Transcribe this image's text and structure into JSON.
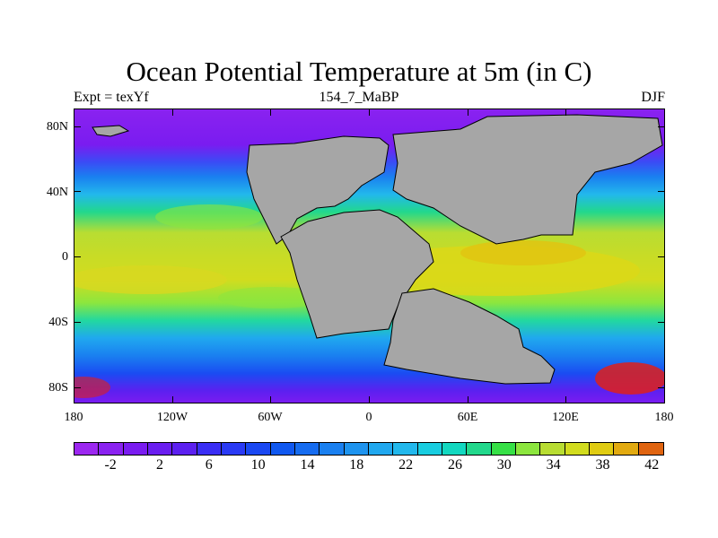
{
  "title": "Ocean Potential Temperature at 5m (in C)",
  "left_label": "Expt = texYf",
  "center_label": "154_7_MaBP",
  "right_label": "DJF",
  "colors": {
    "land": "#a6a6a6",
    "ocean_bands": [
      "#9c27f0",
      "#7a1cf0",
      "#5c20f0",
      "#2a3af5",
      "#1058f0",
      "#1a80f0",
      "#20a0ef",
      "#22b8ec",
      "#18cde0",
      "#12d8c0",
      "#22d88c",
      "#36e046",
      "#8ce63e",
      "#b8dd32",
      "#d2dc1e",
      "#e0cc12",
      "#e2aa10",
      "#e08810",
      "#e06410",
      "#e03a10"
    ]
  },
  "chart_data": {
    "type": "heatmap",
    "variable": "Ocean Potential Temperature at 5m (in C)",
    "experiment": "Expt = texYf",
    "period": "154_7_MaBP",
    "season": "DJF",
    "lat_ticks": [
      "80N",
      "40N",
      "0",
      "40S",
      "80S"
    ],
    "lat_values": [
      80,
      40,
      0,
      -40,
      -80
    ],
    "lon_ticks": [
      "180",
      "120W",
      "60W",
      "0",
      "60E",
      "120E",
      "180"
    ],
    "lon_values": [
      -180,
      -120,
      -60,
      0,
      60,
      120,
      180
    ],
    "lon_range": [
      -180,
      180
    ],
    "lat_range": [
      -90,
      90
    ],
    "colorbar_levels": [
      -4,
      -2,
      0,
      2,
      4,
      6,
      8,
      10,
      12,
      14,
      16,
      18,
      20,
      22,
      24,
      26,
      28,
      30,
      32,
      34,
      36,
      38,
      40,
      42
    ],
    "colorbar_labels": [
      "-2",
      "2",
      "6",
      "10",
      "14",
      "18",
      "22",
      "26",
      "30",
      "34",
      "38",
      "42"
    ],
    "colorbar_label_values": [
      -2,
      2,
      6,
      10,
      14,
      18,
      22,
      26,
      30,
      34,
      38,
      42
    ],
    "colorbar_colors": [
      "#9c27f0",
      "#8a22f0",
      "#7a1cf0",
      "#6a1ef0",
      "#5c20f0",
      "#3a2ef5",
      "#2a3af5",
      "#1a48f2",
      "#1058f0",
      "#166cf0",
      "#1a80f0",
      "#1e94ef",
      "#20a8ef",
      "#22b8ec",
      "#18cde0",
      "#12d8c0",
      "#22d88c",
      "#36e046",
      "#8ce63e",
      "#b8dd32",
      "#d2dc1e",
      "#e0cc12",
      "#e2aa10",
      "#e06410"
    ]
  }
}
